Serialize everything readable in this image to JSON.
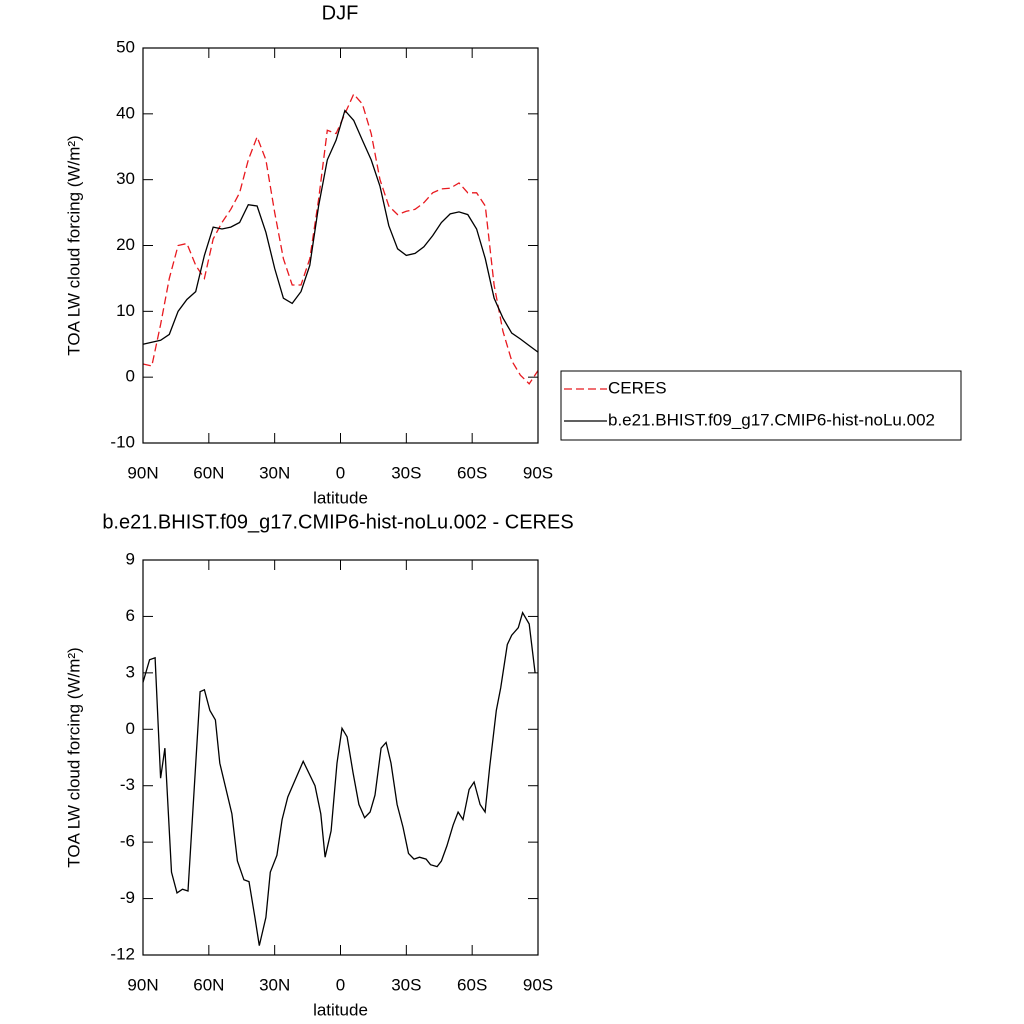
{
  "chart_data": [
    {
      "type": "line",
      "title": "DJF",
      "xlabel": "latitude",
      "ylabel": "TOA LW cloud forcing (W/m²)",
      "x": [
        90,
        86,
        82,
        78,
        74,
        70,
        66,
        62,
        58,
        54,
        50,
        46,
        42,
        38,
        34,
        30,
        26,
        22,
        18,
        14,
        10,
        6,
        2,
        -2,
        -6,
        -10,
        -14,
        -18,
        -22,
        -26,
        -30,
        -34,
        -38,
        -42,
        -46,
        -50,
        -54,
        -58,
        -62,
        -66,
        -70,
        -74,
        -78,
        -82,
        -86,
        -90
      ],
      "series": [
        {
          "name": "CERES",
          "color": "#e8191f",
          "dash": true,
          "values": [
            2,
            1.7,
            8,
            15,
            20,
            20.3,
            17,
            15,
            21,
            23.5,
            25.5,
            28,
            33,
            36.5,
            33,
            25,
            18,
            14,
            14,
            18,
            27,
            37.5,
            37,
            40,
            43,
            41.5,
            37,
            30,
            26,
            24.7,
            25.2,
            25.5,
            26.5,
            28,
            28.6,
            28.7,
            29.5,
            28,
            28,
            26,
            14,
            7,
            2.5,
            0.3,
            -1,
            1
          ]
        },
        {
          "name": "b.e21.BHIST.f09_g17.CMIP6-hist-noLu.002",
          "color": "#000000",
          "dash": false,
          "values": [
            5,
            5.3,
            5.6,
            6.5,
            10,
            11.8,
            13,
            18.5,
            22.8,
            22.5,
            22.8,
            23.5,
            26.2,
            26,
            22,
            16.5,
            12,
            11.2,
            13,
            17,
            26,
            33,
            36,
            40.5,
            39,
            36,
            33,
            29,
            23,
            19.5,
            18.5,
            18.8,
            19.8,
            21.5,
            23.5,
            24.8,
            25.1,
            24.7,
            22.5,
            18,
            12,
            9,
            6.7,
            5.8,
            4.8,
            3.8
          ]
        }
      ],
      "xlim": [
        90,
        -90
      ],
      "xticks": [
        {
          "value": 90,
          "label": "90N"
        },
        {
          "value": 60,
          "label": "60N"
        },
        {
          "value": 30,
          "label": "30N"
        },
        0,
        {
          "value": -30,
          "label": "30S"
        },
        {
          "value": -60,
          "label": "60S"
        },
        {
          "value": -90,
          "label": "90S"
        }
      ],
      "ylim": [
        -10,
        50
      ],
      "yticks": [
        -10,
        0,
        10,
        20,
        30,
        40,
        50
      ],
      "legend": "right"
    },
    {
      "type": "line",
      "title": "b.e21.BHIST.f09_g17.CMIP6-hist-noLu.002 - CERES",
      "xlabel": "latitude",
      "ylabel": "TOA LW cloud forcing (W/m²)",
      "x": [
        90,
        87,
        84.5,
        82,
        80,
        77,
        74.5,
        72,
        69.5,
        64,
        62,
        59.5,
        57,
        55,
        49.5,
        47,
        44,
        41.7,
        39,
        37,
        34,
        32,
        29,
        26.6,
        24,
        17,
        11.6,
        9,
        7,
        4.3,
        1.6,
        -0.7,
        -3,
        -5.7,
        -8.4,
        -11,
        -13.5,
        -15.7,
        -18.5,
        -20.8,
        -23,
        -25.8,
        -28.5,
        -31,
        -33.5,
        -36,
        -39,
        -41,
        -44,
        -46,
        -48.5,
        -51.3,
        -53.6,
        -55.8,
        -58.6,
        -60.9,
        -63.6,
        -65.9,
        -68,
        -71,
        -73,
        -76,
        -78,
        -81,
        -83,
        -86,
        -88.7
      ],
      "values": [
        2.5,
        3.7,
        3.8,
        -2.6,
        -1,
        -7.6,
        -8.7,
        -8.5,
        -8.6,
        2,
        2.1,
        1,
        0.5,
        -1.8,
        -4.5,
        -7,
        -8,
        -8.1,
        -10,
        -11.5,
        -10,
        -7.6,
        -6.7,
        -4.8,
        -3.6,
        -1.7,
        -3,
        -4.5,
        -6.8,
        -5.4,
        -1.8,
        0.05,
        -0.4,
        -2.3,
        -4,
        -4.7,
        -4.4,
        -3.5,
        -1,
        -0.7,
        -1.8,
        -4,
        -5.2,
        -6.6,
        -6.9,
        -6.8,
        -6.9,
        -7.2,
        -7.3,
        -7,
        -6.2,
        -5.1,
        -4.4,
        -4.8,
        -3.2,
        -2.8,
        -4,
        -4.4,
        -2,
        1,
        2.2,
        4.5,
        5,
        5.4,
        6.2,
        5.6,
        3
      ],
      "color": "#000000",
      "xlim": [
        90,
        -90
      ],
      "xticks": [
        {
          "value": 90,
          "label": "90N"
        },
        {
          "value": 60,
          "label": "60N"
        },
        {
          "value": 30,
          "label": "30N"
        },
        0,
        {
          "value": -30,
          "label": "30S"
        },
        {
          "value": -60,
          "label": "60S"
        },
        {
          "value": -90,
          "label": "90S"
        }
      ],
      "ylim": [
        -12,
        9
      ],
      "yticks": [
        -12,
        -9,
        -6,
        -3,
        0,
        3,
        6,
        9
      ]
    }
  ]
}
